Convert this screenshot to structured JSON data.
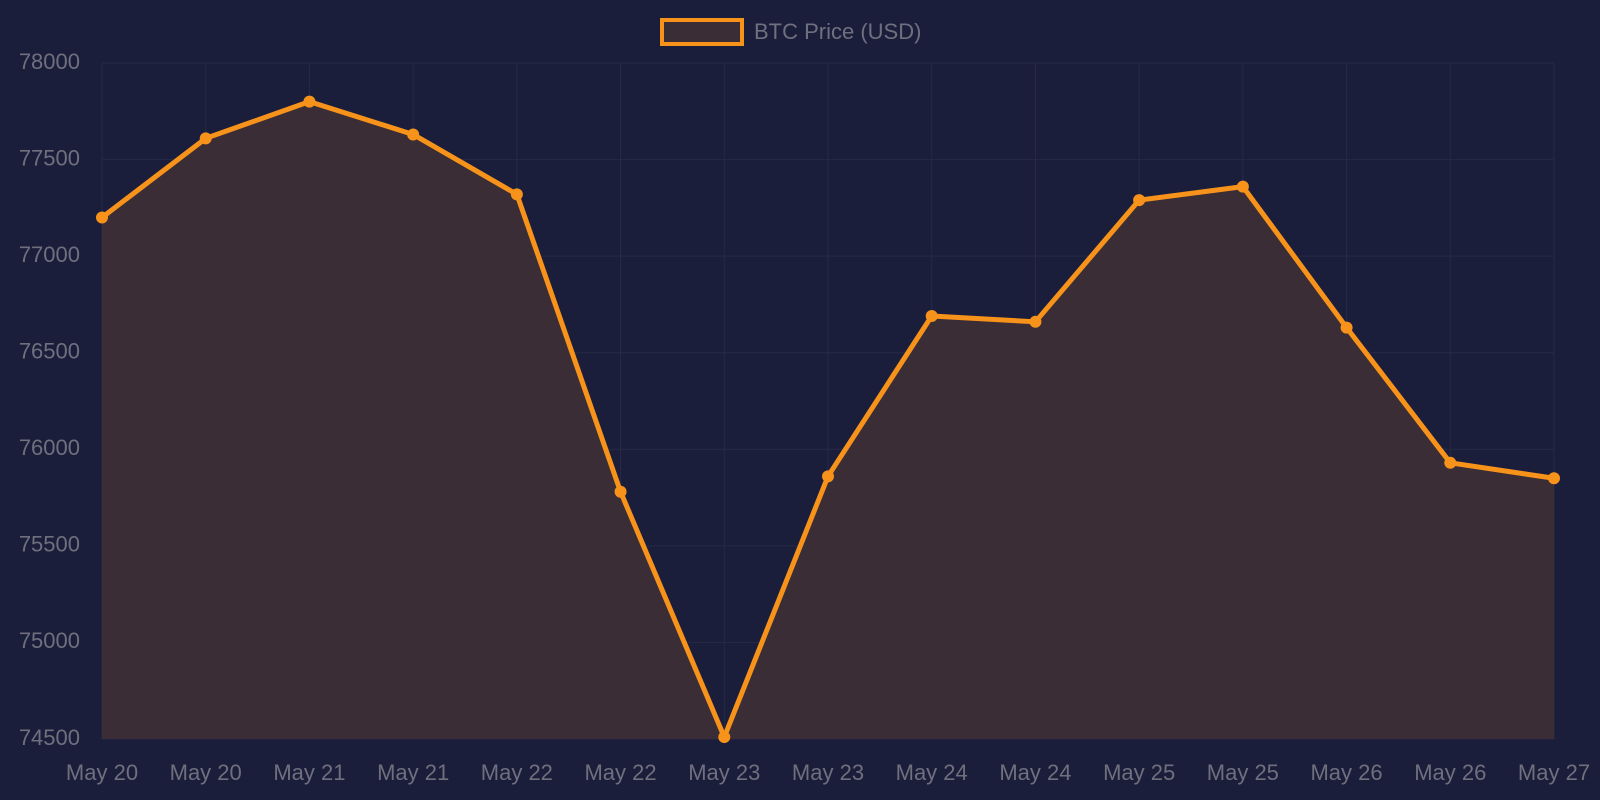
{
  "chart_data": {
    "type": "line",
    "categories": [
      "May 20",
      "May 20",
      "May 21",
      "May 21",
      "May 22",
      "May 22",
      "May 23",
      "May 23",
      "May 24",
      "May 24",
      "May 25",
      "May 25",
      "May 26",
      "May 26",
      "May 27"
    ],
    "series": [
      {
        "name": "BTC Price (USD)",
        "color": "#f7931a",
        "fill": "#3b2d35",
        "values": [
          77200,
          77610,
          77800,
          77630,
          77320,
          75780,
          74510,
          75860,
          76690,
          76660,
          77290,
          77360,
          76630,
          75930,
          75850
        ]
      }
    ],
    "ylim": [
      74500,
      78000
    ],
    "yticks": [
      74500,
      75000,
      75500,
      76000,
      76500,
      77000,
      77500,
      78000
    ],
    "grid": true
  }
}
